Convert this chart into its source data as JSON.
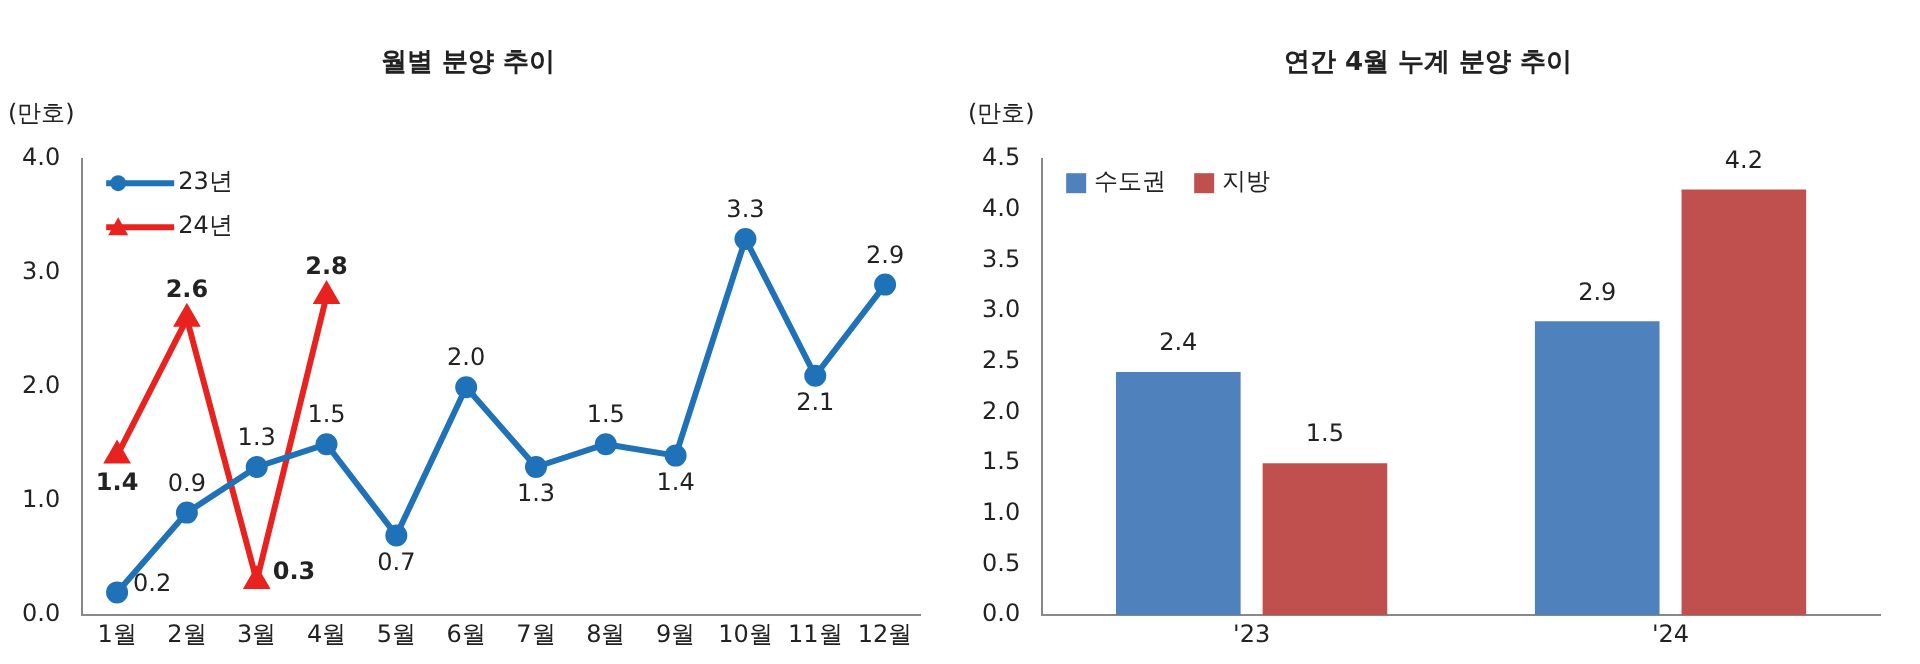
{
  "chart_data": [
    {
      "type": "line",
      "title": "월별 분양 추이",
      "ylabel": "(만호)",
      "categories": [
        "1월",
        "2월",
        "3월",
        "4월",
        "5월",
        "6월",
        "7월",
        "8월",
        "9월",
        "10월",
        "11월",
        "12월"
      ],
      "series": [
        {
          "name": "23년",
          "color": "#1f72b8",
          "marker": "circle",
          "values": [
            0.2,
            0.9,
            1.3,
            1.5,
            0.7,
            2.0,
            1.3,
            1.5,
            1.4,
            3.3,
            2.1,
            2.9
          ],
          "value_labels": [
            "0.2",
            "0.9",
            "1.3",
            "1.5",
            "0.7",
            "2.0",
            "1.3",
            "1.5",
            "1.4",
            "3.3",
            "2.1",
            "2.9"
          ]
        },
        {
          "name": "24년",
          "color": "#e8231f",
          "marker": "triangle",
          "values": [
            1.4,
            2.6,
            0.3,
            2.8,
            null,
            null,
            null,
            null,
            null,
            null,
            null,
            null
          ],
          "value_labels": [
            "1.4",
            "2.6",
            "0.3",
            "2.8",
            null,
            null,
            null,
            null,
            null,
            null,
            null,
            null
          ]
        }
      ],
      "ylim": [
        0,
        4
      ],
      "yticks": [
        {
          "value": 0,
          "label": "0.0"
        },
        {
          "value": 1,
          "label": "1.0"
        },
        {
          "value": 2,
          "label": "2.0"
        },
        {
          "value": 3,
          "label": "3.0"
        },
        {
          "value": 4,
          "label": "4.0"
        }
      ],
      "grid": false,
      "legend": "top left"
    },
    {
      "type": "bar",
      "title": "연간 4월 누계 분양 추이",
      "ylabel": "(만호)",
      "categories": [
        "'23",
        "'24"
      ],
      "series": [
        {
          "name": "수도권",
          "color": "#4f81bd",
          "values": [
            2.4,
            2.9
          ],
          "value_labels": [
            "2.4",
            "2.9"
          ]
        },
        {
          "name": "지방",
          "color": "#c0504d",
          "values": [
            1.5,
            4.2
          ],
          "value_labels": [
            "1.5",
            "4.2"
          ]
        }
      ],
      "ylim": [
        0,
        4.5
      ],
      "yticks": [
        {
          "value": 0,
          "label": "0.0"
        },
        {
          "value": 0.5,
          "label": "0.5"
        },
        {
          "value": 1,
          "label": "1.0"
        },
        {
          "value": 1.5,
          "label": "1.5"
        },
        {
          "value": 2,
          "label": "2.0"
        },
        {
          "value": 2.5,
          "label": "2.5"
        },
        {
          "value": 3,
          "label": "3.0"
        },
        {
          "value": 3.5,
          "label": "3.5"
        },
        {
          "value": 4,
          "label": "4.0"
        },
        {
          "value": 4.5,
          "label": "4.5"
        }
      ],
      "grid": false,
      "legend": "top left"
    }
  ]
}
